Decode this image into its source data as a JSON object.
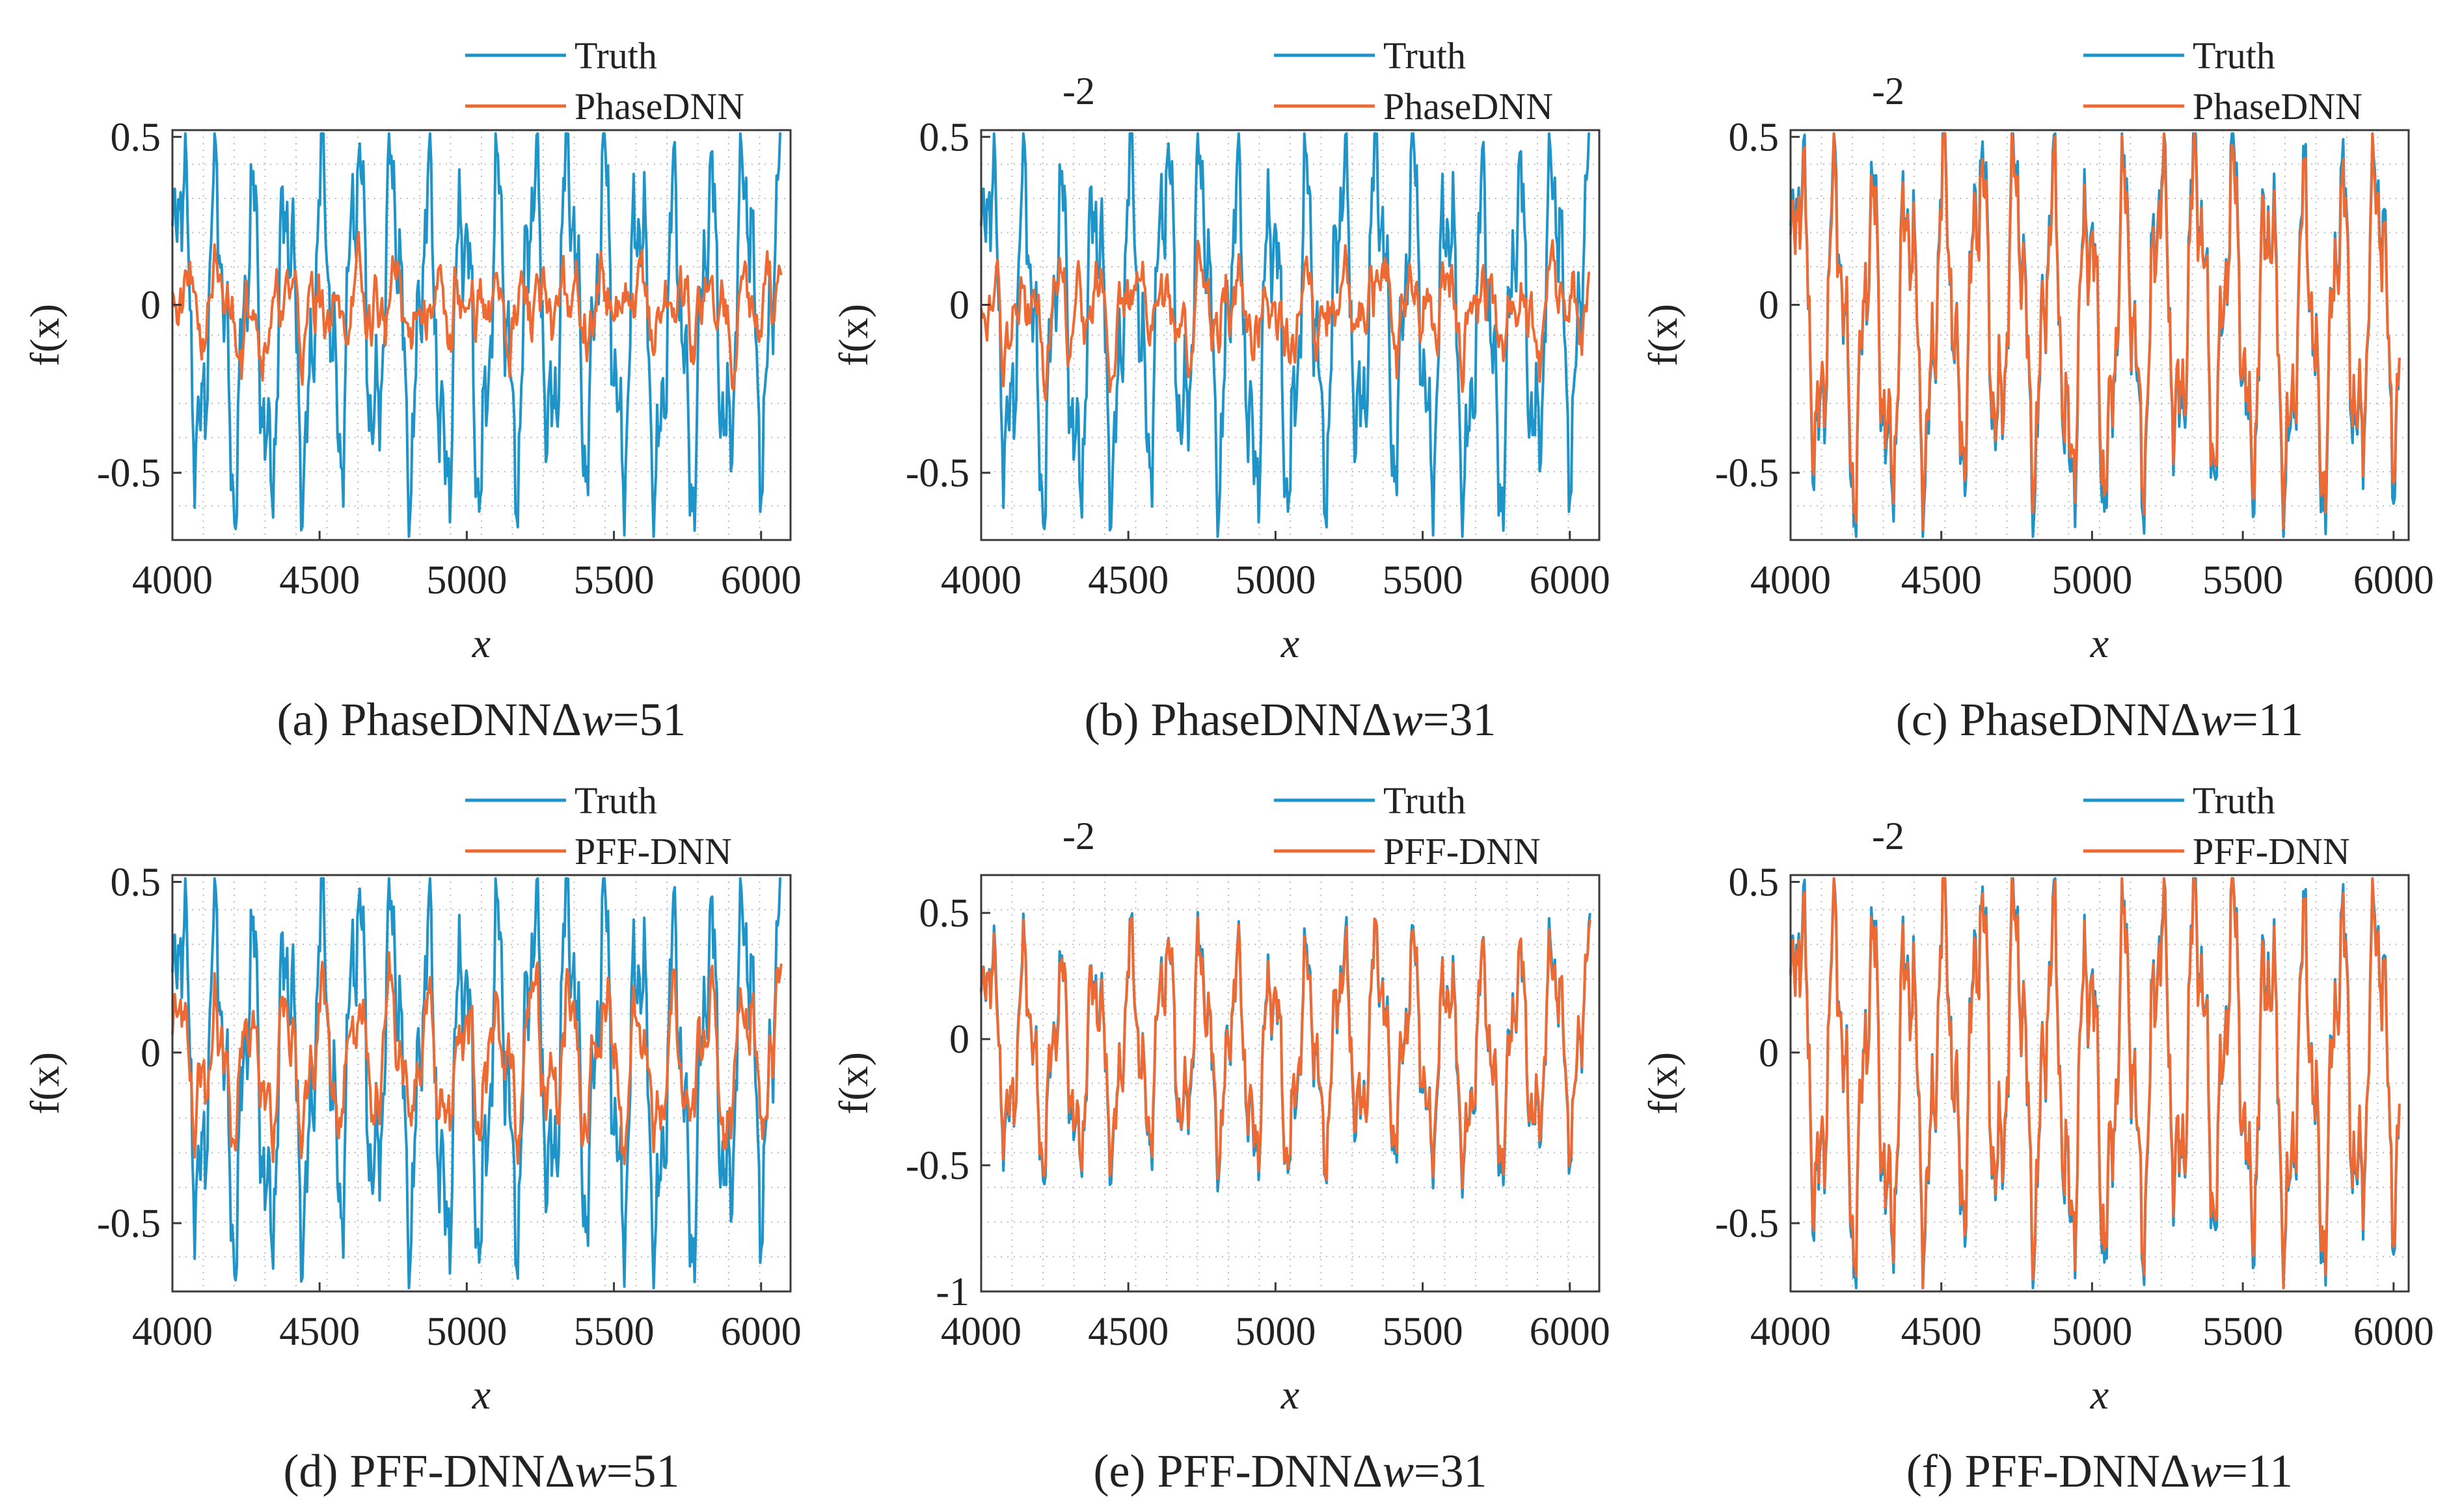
{
  "figure": {
    "description_free": true
  },
  "colors": {
    "truth": "#1f94c8",
    "model": "#ef6a32",
    "grid": "#bdbdbd",
    "axis": "#3a3a3a"
  },
  "chart_data": [
    {
      "id": "a",
      "type": "line",
      "caption_prefix": "(a) ",
      "caption_method": "PhaseDNN",
      "caption_delta": "Δ",
      "caption_var": "w",
      "caption_value": "=51",
      "xlabel": "x",
      "ylabel": "f(x)",
      "exponent": "",
      "xlim": [
        4000,
        6100
      ],
      "ylim": [
        -0.7,
        0.52
      ],
      "xticks": [
        4000,
        4500,
        5000,
        5500,
        6000
      ],
      "xtick_labels": [
        "4000",
        "4500",
        "5000",
        "5500",
        "6000"
      ],
      "yticks": [
        -0.5,
        0,
        0.5
      ],
      "ytick_labels": [
        "-0.5",
        "0",
        "0.5"
      ],
      "legend": [
        "Truth",
        "PhaseDNN"
      ],
      "legend_position": "top-right",
      "series": [
        {
          "name": "Truth",
          "color": "#1f94c8",
          "seed": 11,
          "amp": 1.0,
          "kind": "truth"
        },
        {
          "name": "PhaseDNN",
          "color": "#ef6a32",
          "seed": 21,
          "fit": 0.25,
          "amp": 0.45,
          "kind": "model"
        }
      ]
    },
    {
      "id": "b",
      "type": "line",
      "caption_prefix": "(b) ",
      "caption_method": "PhaseDNN",
      "caption_delta": "Δ",
      "caption_var": "w",
      "caption_value": "=31",
      "xlabel": "x",
      "ylabel": "f(x)",
      "exponent": "-2",
      "xlim": [
        4000,
        6100
      ],
      "ylim": [
        -0.7,
        0.52
      ],
      "xticks": [
        4000,
        4500,
        5000,
        5500,
        6000
      ],
      "xtick_labels": [
        "4000",
        "4500",
        "5000",
        "5500",
        "6000"
      ],
      "yticks": [
        -0.5,
        0,
        0.5
      ],
      "ytick_labels": [
        "-0.5",
        "0",
        "0.5"
      ],
      "legend": [
        "Truth",
        "PhaseDNN"
      ],
      "legend_position": "top-right",
      "series": [
        {
          "name": "Truth",
          "color": "#1f94c8",
          "seed": 11,
          "amp": 1.0,
          "kind": "truth"
        },
        {
          "name": "PhaseDNN",
          "color": "#ef6a32",
          "seed": 22,
          "fit": 0.35,
          "amp": 0.55,
          "kind": "model"
        }
      ]
    },
    {
      "id": "c",
      "type": "line",
      "caption_prefix": "(c) ",
      "caption_method": "PhaseDNN",
      "caption_delta": "Δ",
      "caption_var": "w",
      "caption_value": "=11",
      "xlabel": "x",
      "ylabel": "f(x)",
      "exponent": "-2",
      "xlim": [
        4000,
        6050
      ],
      "ylim": [
        -0.7,
        0.52
      ],
      "xticks": [
        4000,
        4500,
        5000,
        5500,
        6000
      ],
      "xtick_labels": [
        "4000",
        "4500",
        "5000",
        "5500",
        "6000"
      ],
      "yticks": [
        -0.5,
        0,
        0.5
      ],
      "ytick_labels": [
        "-0.5",
        "0",
        "0.5"
      ],
      "legend": [
        "Truth",
        "PhaseDNN"
      ],
      "legend_position": "top-right",
      "series": [
        {
          "name": "Truth",
          "color": "#1f94c8",
          "seed": 11,
          "amp": 1.0,
          "kind": "truth"
        },
        {
          "name": "PhaseDNN",
          "color": "#ef6a32",
          "seed": 23,
          "fit": 0.94,
          "amp": 0.97,
          "kind": "model"
        }
      ]
    },
    {
      "id": "d",
      "type": "line",
      "caption_prefix": "(d) ",
      "caption_method": "PFF-DNN",
      "caption_delta": "Δ",
      "caption_var": "w",
      "caption_value": "=51",
      "xlabel": "x",
      "ylabel": "f(x)",
      "exponent": "",
      "xlim": [
        4000,
        6100
      ],
      "ylim": [
        -0.7,
        0.52
      ],
      "xticks": [
        4000,
        4500,
        5000,
        5500,
        6000
      ],
      "xtick_labels": [
        "4000",
        "4500",
        "5000",
        "5500",
        "6000"
      ],
      "yticks": [
        -0.5,
        0,
        0.5
      ],
      "ytick_labels": [
        "-0.5",
        "0",
        "0.5"
      ],
      "legend": [
        "Truth",
        "PFF-DNN"
      ],
      "legend_position": "top-right",
      "series": [
        {
          "name": "Truth",
          "color": "#1f94c8",
          "seed": 11,
          "amp": 1.0,
          "kind": "truth"
        },
        {
          "name": "PFF-DNN",
          "color": "#ef6a32",
          "seed": 24,
          "fit": 0.55,
          "amp": 0.7,
          "kind": "model"
        }
      ]
    },
    {
      "id": "e",
      "type": "line",
      "caption_prefix": "(e) ",
      "caption_method": "PFF-DNN",
      "caption_delta": "Δ",
      "caption_var": "w",
      "caption_value": "=31",
      "xlabel": "x",
      "ylabel": "f(x)",
      "exponent": "-2",
      "xlim": [
        4000,
        6100
      ],
      "ylim": [
        -1.0,
        0.65
      ],
      "xticks": [
        4000,
        4500,
        5000,
        5500,
        6000
      ],
      "xtick_labels": [
        "4000",
        "4500",
        "5000",
        "5500",
        "6000"
      ],
      "yticks": [
        -1,
        -0.5,
        0,
        0.5
      ],
      "ytick_labels": [
        "-1",
        "-0.5",
        "0",
        "0.5"
      ],
      "legend": [
        "Truth",
        "PFF-DNN"
      ],
      "legend_position": "top-right",
      "series": [
        {
          "name": "Truth",
          "color": "#1f94c8",
          "seed": 31,
          "amp": 0.85,
          "kind": "truth"
        },
        {
          "name": "PFF-DNN",
          "color": "#ef6a32",
          "seed": 25,
          "fit": 0.9,
          "amp": 0.9,
          "kind": "model"
        }
      ]
    },
    {
      "id": "f",
      "type": "line",
      "caption_prefix": "(f) ",
      "caption_method": "PFF-DNN",
      "caption_delta": "Δ",
      "caption_var": "w",
      "caption_value": "=11",
      "xlabel": "x",
      "ylabel": "f(x)",
      "exponent": "-2",
      "xlim": [
        4000,
        6050
      ],
      "ylim": [
        -0.7,
        0.52
      ],
      "xticks": [
        4000,
        4500,
        5000,
        5500,
        6000
      ],
      "xtick_labels": [
        "4000",
        "4500",
        "5000",
        "5500",
        "6000"
      ],
      "yticks": [
        -0.5,
        0,
        0.5
      ],
      "ytick_labels": [
        "-0.5",
        "0",
        "0.5"
      ],
      "legend": [
        "Truth",
        "PFF-DNN"
      ],
      "legend_position": "top-right",
      "series": [
        {
          "name": "Truth",
          "color": "#1f94c8",
          "seed": 11,
          "amp": 1.0,
          "kind": "truth"
        },
        {
          "name": "PFF-DNN",
          "color": "#ef6a32",
          "seed": 26,
          "fit": 0.97,
          "amp": 0.98,
          "kind": "model"
        }
      ]
    }
  ]
}
